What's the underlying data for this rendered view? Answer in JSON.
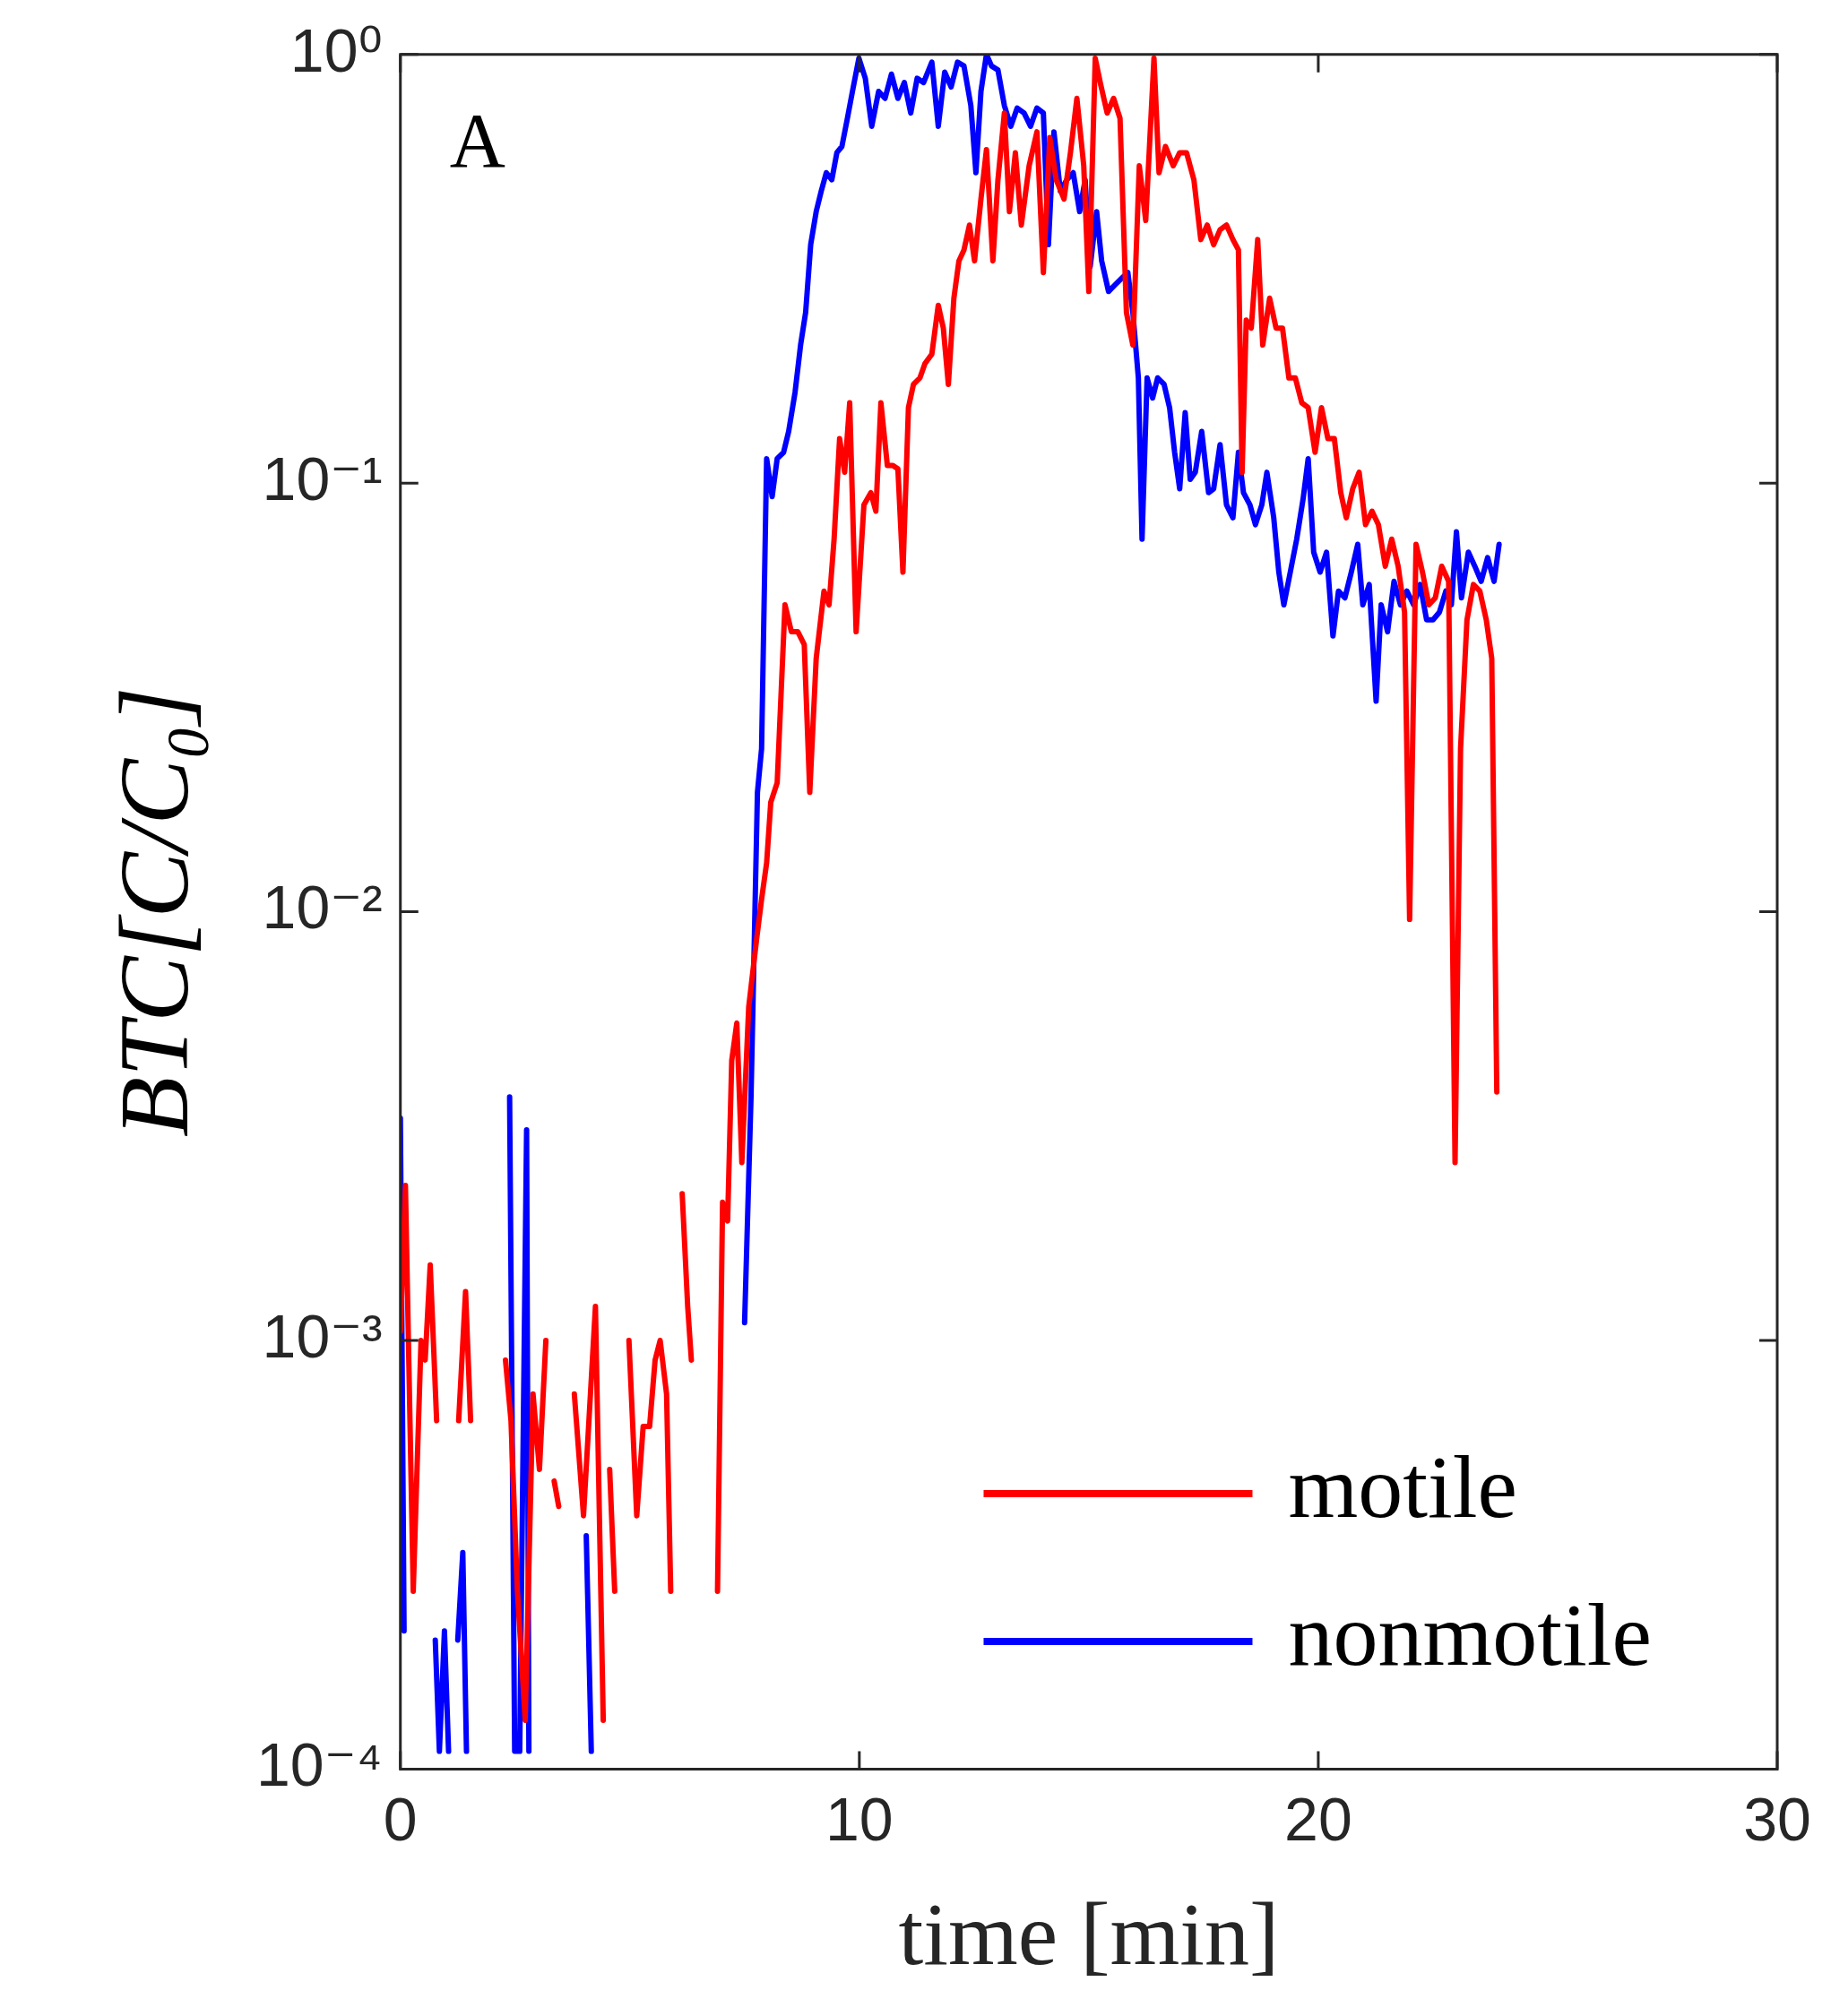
{
  "chart_data": {
    "type": "line",
    "xlabel": "time [min]",
    "ylabel": "BTC[C/C₀]",
    "log": "y",
    "xlim": [
      0,
      30
    ],
    "xticks": [
      0,
      10,
      20,
      30
    ],
    "ylim": [
      0.0001,
      1
    ],
    "yticks": [
      {
        "value": 0.0001,
        "label": "10⁻⁴"
      },
      {
        "value": 0.001,
        "label": "10⁻³"
      },
      {
        "value": 0.01,
        "label": "10⁻²"
      },
      {
        "value": 0.1,
        "label": "10⁻¹"
      },
      {
        "value": 1,
        "label": "10⁰"
      }
    ],
    "grid": false,
    "legend": "bottom right",
    "annotations": [
      "A"
    ],
    "series": [
      {
        "name": "motile",
        "color": "#ff0000",
        "x": [
          0.0,
          0.11,
          0.28,
          0.45,
          0.54,
          0.65,
          0.79,
          1.0,
          1.27,
          1.42,
          1.53,
          2.0,
          2.29,
          2.41,
          2.55,
          2.72,
          2.89,
          3.03,
          3.17,
          3.3,
          3.35,
          3.45,
          3.6,
          3.79,
          3.99,
          4.25,
          4.42,
          4.5,
          4.56,
          4.67,
          4.8,
          4.98,
          5.15,
          5.29,
          5.43,
          5.55,
          5.66,
          5.8,
          5.89,
          6.0,
          6.14,
          6.26,
          6.34,
          6.6,
          6.91,
          7.02,
          7.13,
          7.22,
          7.33,
          7.44,
          7.59,
          7.76,
          7.87,
          7.98,
          8.07,
          8.21,
          8.38,
          8.52,
          8.66,
          8.8,
          8.92,
          9.06,
          9.23,
          9.34,
          9.45,
          9.57,
          9.68,
          9.79,
          9.93,
          10.1,
          10.25,
          10.36,
          10.47,
          10.61,
          10.73,
          10.84,
          10.95,
          11.07,
          11.18,
          11.32,
          11.43,
          11.58,
          11.72,
          11.83,
          11.94,
          12.06,
          12.17,
          12.28,
          12.4,
          12.51,
          12.65,
          12.77,
          12.91,
          13.02,
          13.16,
          13.27,
          13.4,
          13.53,
          13.7,
          13.87,
          14.01,
          14.15,
          14.29,
          14.46,
          14.6,
          14.74,
          14.89,
          15.0,
          15.14,
          15.26,
          15.4,
          15.54,
          15.68,
          15.82,
          15.96,
          16.1,
          16.24,
          16.42,
          16.53,
          16.67,
          16.84,
          16.98,
          17.13,
          17.29,
          17.44,
          17.58,
          17.72,
          17.86,
          18.0,
          18.14,
          18.26,
          18.34,
          18.43,
          18.54,
          18.68,
          18.79,
          18.94,
          19.08,
          19.22,
          19.36,
          19.5,
          19.64,
          19.78,
          19.93,
          20.07,
          20.21,
          20.35,
          20.49,
          20.61,
          20.75,
          20.89,
          21.03,
          21.17,
          21.31,
          21.46,
          21.6,
          21.74,
          21.88,
          21.99,
          22.13,
          22.27,
          22.41,
          22.55,
          22.69,
          22.84,
          22.98,
          23.1,
          23.24,
          23.38,
          23.52,
          23.66,
          23.78,
          23.89
        ],
        "values": [
          0.00105,
          0.0023,
          0.00026,
          0.001,
          0.0009,
          0.0015,
          0.00065,
          null,
          0.00065,
          0.0013,
          0.00065,
          null,
          0.0009,
          0.00065,
          0.00026,
          0.00013,
          0.00075,
          0.0005,
          0.001,
          null,
          0.00047,
          0.00041,
          null,
          0.00075,
          0.00039,
          0.0012,
          0.00013,
          null,
          0.0005,
          0.00026,
          null,
          0.001,
          0.00039,
          0.00063,
          0.00063,
          0.0009,
          0.001,
          0.00075,
          0.00026,
          null,
          0.0022,
          0.0012,
          0.0009,
          null,
          0.00026,
          0.0021,
          0.0019,
          0.0045,
          0.0055,
          0.0026,
          0.006,
          0.0086,
          0.0107,
          0.013,
          0.018,
          0.02,
          0.052,
          0.045,
          0.045,
          0.042,
          0.019,
          0.039,
          0.056,
          0.052,
          0.074,
          0.127,
          0.106,
          0.154,
          0.045,
          0.089,
          0.095,
          0.086,
          0.154,
          0.11,
          0.11,
          0.108,
          0.062,
          0.15,
          0.17,
          0.176,
          0.19,
          0.2,
          0.26,
          0.23,
          0.17,
          0.27,
          0.33,
          0.35,
          0.4,
          0.33,
          0.46,
          0.6,
          0.33,
          0.51,
          0.73,
          0.43,
          0.59,
          0.4,
          0.55,
          0.66,
          0.31,
          0.64,
          0.51,
          0.46,
          0.59,
          0.79,
          0.55,
          0.28,
          0.98,
          0.85,
          0.73,
          0.79,
          0.71,
          0.25,
          0.21,
          0.55,
          0.41,
          0.98,
          0.53,
          0.61,
          0.55,
          0.59,
          0.59,
          0.51,
          0.37,
          0.4,
          0.36,
          0.39,
          0.4,
          0.37,
          0.35,
          0.106,
          0.24,
          0.23,
          0.37,
          0.21,
          0.27,
          0.23,
          0.23,
          0.176,
          0.176,
          0.154,
          0.15,
          0.118,
          0.15,
          0.127,
          0.127,
          0.095,
          0.083,
          0.097,
          0.106,
          0.08,
          0.086,
          0.08,
          0.064,
          0.074,
          0.064,
          0.05,
          0.0096,
          0.072,
          0.062,
          0.052,
          0.054,
          0.064,
          0.059,
          0.0026,
          0.024,
          0.048,
          0.058,
          0.056,
          0.048,
          0.039,
          0.0038
        ]
      },
      {
        "name": "nonmotile",
        "color": "#0000ff",
        "x": [
          0.0,
          0.08,
          0.5,
          0.76,
          0.85,
          0.96,
          1.05,
          1.15,
          1.25,
          1.36,
          1.44,
          2.0,
          2.38,
          2.49,
          2.6,
          2.75,
          2.8,
          3.5,
          4.05,
          4.16,
          6.0,
          7.5,
          7.64,
          7.78,
          7.87,
          7.98,
          8.1,
          8.21,
          8.35,
          8.46,
          8.6,
          8.72,
          8.83,
          8.94,
          9.06,
          9.17,
          9.28,
          9.4,
          9.51,
          9.62,
          9.74,
          9.85,
          9.99,
          10.13,
          10.27,
          10.42,
          10.56,
          10.7,
          10.84,
          10.98,
          11.12,
          11.26,
          11.4,
          11.58,
          11.72,
          11.86,
          12.0,
          12.14,
          12.28,
          12.43,
          12.54,
          12.65,
          12.77,
          12.88,
          13.02,
          13.16,
          13.3,
          13.44,
          13.59,
          13.73,
          13.87,
          14.01,
          14.12,
          14.24,
          14.38,
          14.52,
          14.66,
          14.8,
          14.92,
          15.03,
          15.17,
          15.28,
          15.43,
          15.57,
          15.71,
          15.85,
          15.96,
          16.08,
          16.16,
          16.27,
          16.39,
          16.5,
          16.64,
          16.76,
          16.87,
          16.98,
          17.1,
          17.21,
          17.32,
          17.46,
          17.61,
          17.72,
          17.86,
          18.0,
          18.14,
          18.26,
          18.37,
          18.51,
          18.63,
          18.77,
          18.88,
          19.03,
          19.14,
          19.25,
          19.39,
          19.53,
          19.67,
          19.78,
          19.9,
          20.04,
          20.18,
          20.32,
          20.44,
          20.58,
          20.72,
          20.86,
          20.97,
          21.11,
          21.26,
          21.37,
          21.51,
          21.65,
          21.79,
          21.93,
          22.08,
          22.22,
          22.36,
          22.5,
          22.64,
          22.78,
          22.9,
          23.01,
          23.12,
          23.27,
          23.41,
          23.55,
          23.69,
          23.83,
          23.94
        ],
        "values": [
          0.0033,
          0.00021,
          null,
          0.0002,
          0.00011,
          0.00021,
          0.00011,
          null,
          0.0002,
          0.00032,
          0.00011,
          null,
          0.0037,
          0.00011,
          0.00011,
          0.0031,
          0.00011,
          null,
          0.00035,
          0.00011,
          null,
          0.0011,
          0.0037,
          0.019,
          0.024,
          0.114,
          0.093,
          0.114,
          0.118,
          0.132,
          0.163,
          0.21,
          0.25,
          0.36,
          0.43,
          0.48,
          0.53,
          0.51,
          0.59,
          0.61,
          0.71,
          0.82,
          0.98,
          0.88,
          0.68,
          0.82,
          0.79,
          0.9,
          0.79,
          0.86,
          0.73,
          0.88,
          0.86,
          0.96,
          0.68,
          0.91,
          0.84,
          0.96,
          0.94,
          0.76,
          0.53,
          0.82,
          1.0,
          0.94,
          0.92,
          0.76,
          0.68,
          0.75,
          0.73,
          0.68,
          0.75,
          0.73,
          0.36,
          0.66,
          0.48,
          0.51,
          0.53,
          0.43,
          0.51,
          0.32,
          0.43,
          0.33,
          0.28,
          0.29,
          0.3,
          0.31,
          0.25,
          0.176,
          0.074,
          0.176,
          0.158,
          0.176,
          0.17,
          0.15,
          0.118,
          0.097,
          0.146,
          0.102,
          0.106,
          0.132,
          0.095,
          0.097,
          0.123,
          0.089,
          0.083,
          0.118,
          0.095,
          0.089,
          0.08,
          0.089,
          0.106,
          0.083,
          0.062,
          0.052,
          0.062,
          0.074,
          0.092,
          0.114,
          0.069,
          0.062,
          0.069,
          0.044,
          0.056,
          0.054,
          0.062,
          0.072,
          0.052,
          0.058,
          0.031,
          0.052,
          0.045,
          0.059,
          0.052,
          0.056,
          0.052,
          0.058,
          0.048,
          0.048,
          0.05,
          0.056,
          0.052,
          0.077,
          0.054,
          0.069,
          0.064,
          0.059,
          0.067,
          0.059,
          0.072
        ]
      }
    ]
  }
}
